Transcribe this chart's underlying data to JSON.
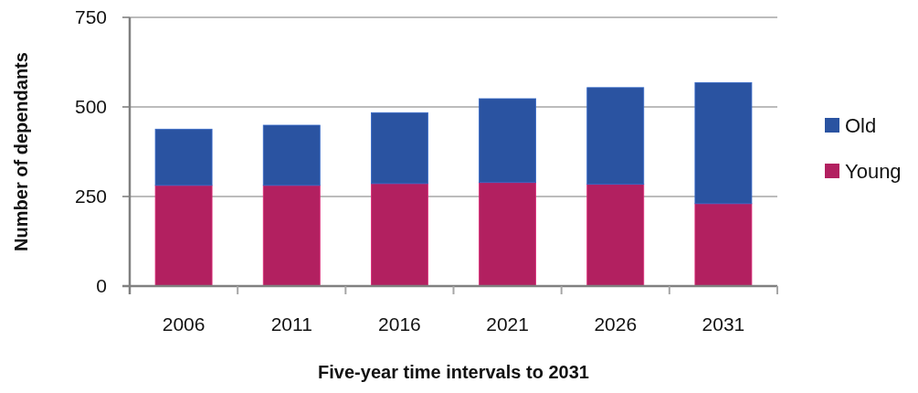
{
  "chart_data": {
    "type": "bar",
    "xlabel": "Five-year time intervals to 2031",
    "ylabel": "Number of dependants",
    "categories": [
      "2006",
      "2011",
      "2016",
      "2021",
      "2026",
      "2031"
    ],
    "series": [
      {
        "name": "Young",
        "color": "#b22060",
        "values": [
          281,
          281,
          286,
          289,
          284,
          230
        ]
      },
      {
        "name": "Old",
        "color": "#2a53a1",
        "values": [
          157,
          168,
          198,
          234,
          270,
          338
        ]
      }
    ],
    "stacked": true,
    "ylim": [
      0,
      750
    ],
    "yticks": [
      0,
      250,
      500,
      750
    ],
    "grid": "y",
    "legend": "right"
  }
}
